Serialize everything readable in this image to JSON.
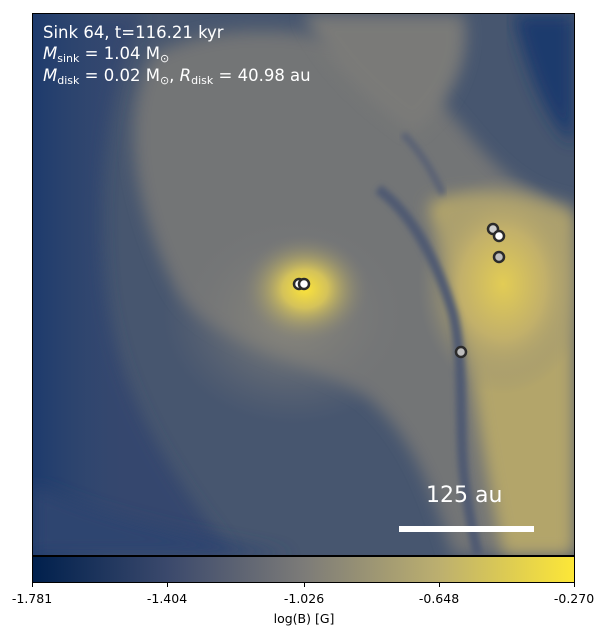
{
  "annotations": {
    "line1": "Sink 64, t=116.21 kyr",
    "m_sink_symbol": "M",
    "m_sink_sub": "sink",
    "m_sink_value": " = 1.04 M",
    "m_sink_unit_sub": "⊙",
    "m_disk_symbol": "M",
    "m_disk_sub": "disk",
    "m_disk_value": " = 0.02 M",
    "m_disk_unit_sub": "⊙",
    "r_disk_sep": ", ",
    "r_disk_symbol": "R",
    "r_disk_sub": "disk",
    "r_disk_value": " = 40.98 au"
  },
  "scale_bar": {
    "label": "125 au"
  },
  "colorbar": {
    "label": "log(B) [G]",
    "ticks": [
      "-1.781",
      "-1.404",
      "-1.026",
      "-0.648",
      "-0.270"
    ],
    "colormap": "cividis",
    "colors": [
      "#00204d",
      "#3b496c",
      "#7c7b78",
      "#bcaf6f",
      "#fde737"
    ]
  },
  "sinks": [
    {
      "name": "sink-left-a",
      "fill": "#ffffff"
    },
    {
      "name": "sink-left-b",
      "fill": "#ffffff"
    },
    {
      "name": "sink-right-top",
      "fill": "#cfcfcf"
    },
    {
      "name": "sink-right-mid",
      "fill": "#ffffff"
    },
    {
      "name": "sink-right-low",
      "fill": "#bdbdbd"
    },
    {
      "name": "sink-center-low",
      "fill": "#bdbdbd"
    }
  ]
}
